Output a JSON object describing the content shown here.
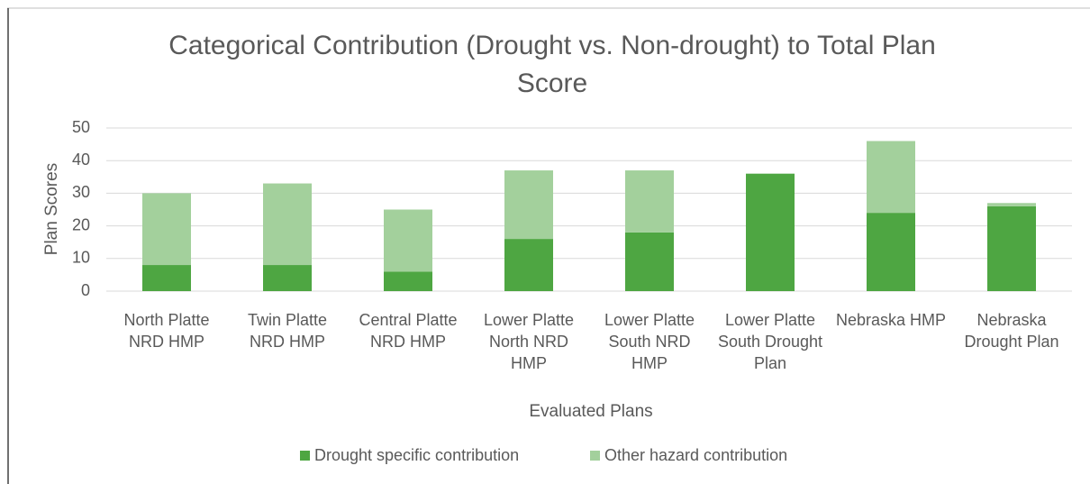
{
  "chart_data": {
    "type": "stacked_bar",
    "title": "Categorical Contribution (Drought vs. Non-drought) to Total Plan Score",
    "x_label": "Evaluated Plans",
    "y_label": "Plan Scores",
    "categories": [
      "North Platte NRD HMP",
      "Twin Platte NRD HMP",
      "Central Platte NRD HMP",
      "Lower Platte North NRD HMP",
      "Lower Platte South NRD HMP",
      "Lower Platte South Drought Plan",
      "Nebraska HMP",
      "Nebraska Drought Plan"
    ],
    "series": [
      {
        "name": "Drought specific contribution",
        "color": "#4ea642",
        "values": [
          8,
          8,
          6,
          16,
          18,
          36,
          24,
          26
        ]
      },
      {
        "name": "Other hazard contribution",
        "color": "#a3d09c",
        "values": [
          22,
          25,
          19,
          21,
          19,
          0,
          22,
          1
        ]
      }
    ],
    "ylim": [
      0,
      50
    ],
    "yticks": [
      0,
      10,
      20,
      30,
      40,
      50
    ],
    "grid": true,
    "legend": "bottom"
  }
}
